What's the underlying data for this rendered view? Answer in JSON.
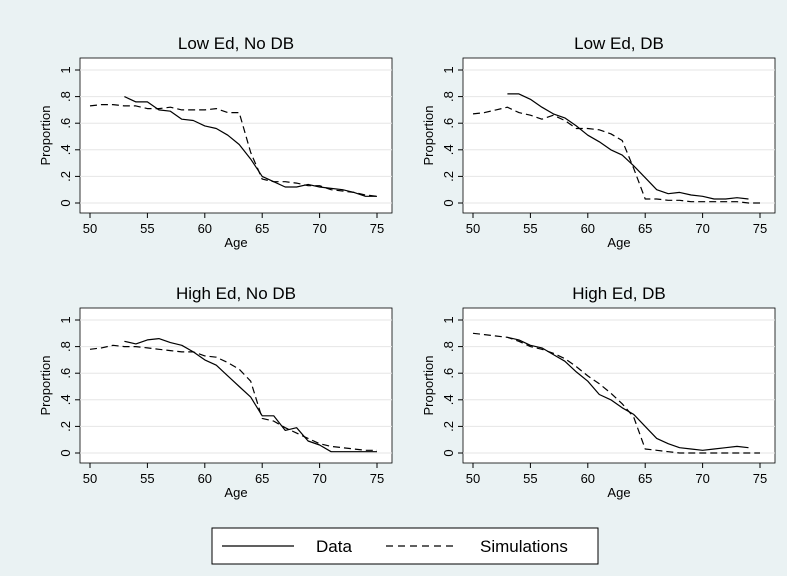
{
  "figure": {
    "background_color": "#eaf2f3",
    "plot_background_color": "#ffffff",
    "line_color": "#000000",
    "grid_color": "#e6e6e6"
  },
  "legend": {
    "position": "bottom-center",
    "entries": [
      {
        "label": "Data",
        "style": "solid"
      },
      {
        "label": "Simulations",
        "style": "dashed"
      }
    ]
  },
  "chart_data": [
    {
      "type": "line",
      "title": "Low Ed, No DB",
      "xlabel": "Age",
      "ylabel": "Proportion",
      "xlim": [
        50,
        75
      ],
      "ylim": [
        0,
        1
      ],
      "grid": true,
      "xticks": [
        50,
        55,
        60,
        65,
        70,
        75
      ],
      "yticks": [
        0,
        0.2,
        0.4,
        0.6,
        0.8,
        1
      ],
      "ytick_labels": [
        "0",
        ".2",
        ".4",
        ".6",
        ".8",
        "1"
      ],
      "series": [
        {
          "name": "Data",
          "style": "solid",
          "x": [
            53,
            54,
            55,
            56,
            57,
            58,
            59,
            60,
            61,
            62,
            63,
            64,
            65,
            66,
            67,
            68,
            69,
            70,
            71,
            72,
            73,
            74,
            75
          ],
          "y": [
            0.8,
            0.76,
            0.76,
            0.7,
            0.69,
            0.63,
            0.62,
            0.58,
            0.56,
            0.51,
            0.44,
            0.33,
            0.2,
            0.16,
            0.12,
            0.12,
            0.14,
            0.12,
            0.11,
            0.1,
            0.08,
            0.05,
            0.05
          ]
        },
        {
          "name": "Simulations",
          "style": "dashed",
          "x": [
            50,
            51,
            52,
            53,
            54,
            55,
            56,
            57,
            58,
            59,
            60,
            61,
            62,
            63,
            64,
            65,
            66,
            67,
            68,
            69,
            70,
            71,
            72,
            73,
            74,
            75
          ],
          "y": [
            0.73,
            0.74,
            0.74,
            0.73,
            0.73,
            0.71,
            0.71,
            0.72,
            0.7,
            0.7,
            0.7,
            0.71,
            0.68,
            0.68,
            0.38,
            0.18,
            0.16,
            0.16,
            0.15,
            0.13,
            0.13,
            0.1,
            0.09,
            0.08,
            0.06,
            0.05
          ]
        }
      ]
    },
    {
      "type": "line",
      "title": "Low Ed, DB",
      "xlabel": "Age",
      "ylabel": "Proportion",
      "xlim": [
        50,
        75
      ],
      "ylim": [
        0,
        1
      ],
      "grid": true,
      "xticks": [
        50,
        55,
        60,
        65,
        70,
        75
      ],
      "yticks": [
        0,
        0.2,
        0.4,
        0.6,
        0.8,
        1
      ],
      "ytick_labels": [
        "0",
        ".2",
        ".4",
        ".6",
        ".8",
        "1"
      ],
      "series": [
        {
          "name": "Data",
          "style": "solid",
          "x": [
            53,
            54,
            55,
            56,
            57,
            58,
            59,
            60,
            61,
            62,
            63,
            64,
            65,
            66,
            67,
            68,
            69,
            70,
            71,
            72,
            73,
            74
          ],
          "y": [
            0.82,
            0.82,
            0.78,
            0.72,
            0.67,
            0.64,
            0.58,
            0.51,
            0.46,
            0.4,
            0.36,
            0.28,
            0.19,
            0.1,
            0.07,
            0.08,
            0.06,
            0.05,
            0.03,
            0.03,
            0.04,
            0.03
          ]
        },
        {
          "name": "Simulations",
          "style": "dashed",
          "x": [
            50,
            51,
            52,
            53,
            54,
            55,
            56,
            57,
            58,
            59,
            60,
            61,
            62,
            63,
            64,
            65,
            66,
            67,
            68,
            69,
            70,
            71,
            72,
            73,
            74,
            75
          ],
          "y": [
            0.67,
            0.68,
            0.7,
            0.72,
            0.68,
            0.66,
            0.63,
            0.66,
            0.62,
            0.56,
            0.56,
            0.55,
            0.52,
            0.47,
            0.26,
            0.03,
            0.03,
            0.02,
            0.02,
            0.01,
            0.01,
            0.01,
            0.01,
            0.01,
            0.0,
            0.0
          ]
        }
      ]
    },
    {
      "type": "line",
      "title": "High Ed, No DB",
      "xlabel": "Age",
      "ylabel": "Proportion",
      "xlim": [
        50,
        75
      ],
      "ylim": [
        0,
        1
      ],
      "grid": true,
      "xticks": [
        50,
        55,
        60,
        65,
        70,
        75
      ],
      "yticks": [
        0,
        0.2,
        0.4,
        0.6,
        0.8,
        1
      ],
      "ytick_labels": [
        "0",
        ".2",
        ".4",
        ".6",
        ".8",
        "1"
      ],
      "series": [
        {
          "name": "Data",
          "style": "solid",
          "x": [
            53,
            54,
            55,
            56,
            57,
            58,
            59,
            60,
            61,
            62,
            63,
            64,
            65,
            66,
            67,
            68,
            69,
            70,
            71,
            72,
            73,
            74,
            75
          ],
          "y": [
            0.84,
            0.82,
            0.85,
            0.86,
            0.83,
            0.81,
            0.76,
            0.7,
            0.66,
            0.58,
            0.5,
            0.42,
            0.28,
            0.28,
            0.17,
            0.19,
            0.09,
            0.06,
            0.01,
            0.01,
            0.01,
            0.01,
            0.01
          ]
        },
        {
          "name": "Simulations",
          "style": "dashed",
          "x": [
            50,
            51,
            52,
            53,
            54,
            55,
            56,
            57,
            58,
            59,
            60,
            61,
            62,
            63,
            64,
            65,
            66,
            67,
            68,
            69,
            70,
            71,
            72,
            73,
            74,
            75
          ],
          "y": [
            0.78,
            0.79,
            0.81,
            0.8,
            0.8,
            0.79,
            0.78,
            0.77,
            0.76,
            0.76,
            0.73,
            0.72,
            0.68,
            0.63,
            0.54,
            0.26,
            0.24,
            0.19,
            0.15,
            0.11,
            0.07,
            0.05,
            0.04,
            0.03,
            0.02,
            0.02
          ]
        }
      ]
    },
    {
      "type": "line",
      "title": "High Ed, DB",
      "xlabel": "Age",
      "ylabel": "Proportion",
      "xlim": [
        50,
        75
      ],
      "ylim": [
        0,
        1
      ],
      "grid": true,
      "xticks": [
        50,
        55,
        60,
        65,
        70,
        75
      ],
      "yticks": [
        0,
        0.2,
        0.4,
        0.6,
        0.8,
        1
      ],
      "ytick_labels": [
        "0",
        ".2",
        ".4",
        ".6",
        ".8",
        "1"
      ],
      "series": [
        {
          "name": "Data",
          "style": "solid",
          "x": [
            53,
            54,
            55,
            56,
            57,
            58,
            59,
            60,
            61,
            62,
            63,
            64,
            65,
            66,
            67,
            68,
            69,
            70,
            71,
            72,
            73,
            74
          ],
          "y": [
            0.87,
            0.85,
            0.81,
            0.79,
            0.74,
            0.69,
            0.61,
            0.54,
            0.44,
            0.4,
            0.34,
            0.29,
            0.2,
            0.11,
            0.07,
            0.04,
            0.03,
            0.02,
            0.03,
            0.04,
            0.05,
            0.04
          ]
        },
        {
          "name": "Simulations",
          "style": "dashed",
          "x": [
            50,
            51,
            52,
            53,
            54,
            55,
            56,
            57,
            58,
            59,
            60,
            61,
            62,
            63,
            64,
            65,
            66,
            67,
            68,
            69,
            70,
            71,
            72,
            73,
            74,
            75
          ],
          "y": [
            0.9,
            0.89,
            0.88,
            0.87,
            0.84,
            0.8,
            0.78,
            0.75,
            0.71,
            0.65,
            0.58,
            0.52,
            0.45,
            0.37,
            0.27,
            0.03,
            0.02,
            0.01,
            0.0,
            0.0,
            0.0,
            0.0,
            0.0,
            0.0,
            0.0,
            0.0
          ]
        }
      ]
    }
  ]
}
